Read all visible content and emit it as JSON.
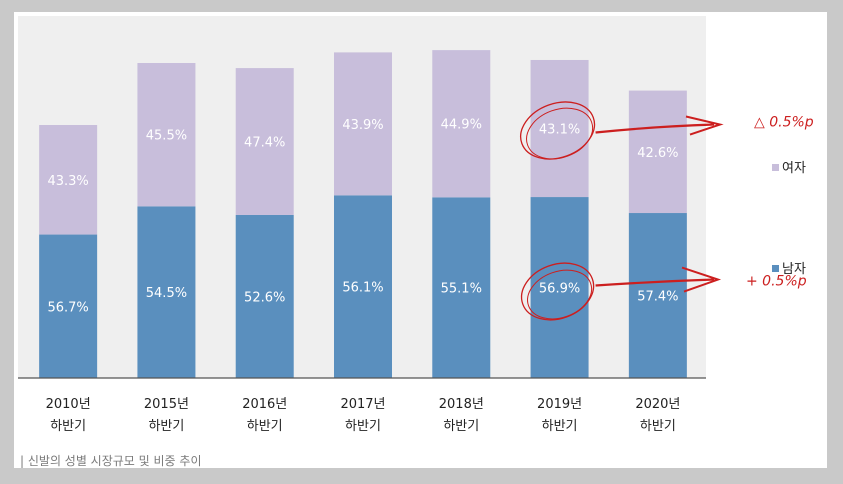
{
  "chart_data": {
    "type": "bar",
    "stacked": true,
    "categories": [
      [
        "2010년",
        "하반기"
      ],
      [
        "2015년",
        "하반기"
      ],
      [
        "2016년",
        "하반기"
      ],
      [
        "2017년",
        "하반기"
      ],
      [
        "2018년",
        "하반기"
      ],
      [
        "2019년",
        "하반기"
      ],
      [
        "2020년",
        "하반기"
      ]
    ],
    "totals_relative": [
      1.0,
      1.245,
      1.225,
      1.287,
      1.296,
      1.257,
      1.136
    ],
    "series": [
      {
        "name": "남자",
        "color": "#5a8fbe",
        "values": [
          56.7,
          54.5,
          52.6,
          56.1,
          55.1,
          56.9,
          57.4
        ],
        "labels": [
          "56.7%",
          "54.5%",
          "52.6%",
          "56.1%",
          "55.1%",
          "56.9%",
          "57.4%"
        ]
      },
      {
        "name": "여자",
        "color": "#c8bedb",
        "values": [
          43.3,
          45.5,
          47.4,
          43.9,
          44.9,
          43.1,
          42.6
        ],
        "labels": [
          "43.3%",
          "45.5%",
          "47.4%",
          "43.9%",
          "44.9%",
          "43.1%",
          "42.6%"
        ]
      }
    ],
    "legend_position": "right",
    "gridlines": false
  },
  "annotations": {
    "female_change": "△ 0.5%p",
    "male_change": "+ 0.5%p",
    "color": "#cc1f1f"
  },
  "caption": "| 신발의 성별 시장규모 및 비중 추이"
}
